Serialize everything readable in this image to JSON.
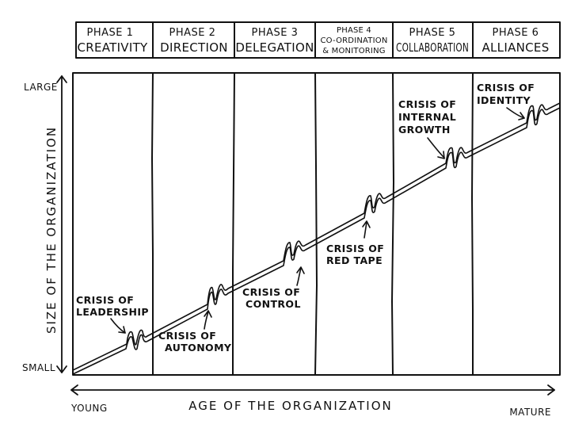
{
  "phases": [
    {
      "number": "PHASE 1",
      "name": "CREATIVITY"
    },
    {
      "number": "PHASE 2",
      "name": "DIRECTION"
    },
    {
      "number": "PHASE 3",
      "name": "DELEGATION"
    },
    {
      "number": "PHASE 4",
      "name_lines": [
        "CO-ORDINATION",
        "& MONITORING"
      ]
    },
    {
      "number": "PHASE 5",
      "name": "COLLABORATION"
    },
    {
      "number": "PHASE 6",
      "name": "ALLIANCES"
    }
  ],
  "y_axis": {
    "label": "SIZE OF THE ORGANIZATION",
    "top": "LARGE",
    "bottom": "SMALL"
  },
  "x_axis": {
    "label": "AGE OF THE ORGANIZATION",
    "left": "YOUNG",
    "right": "MATURE"
  },
  "crises": [
    {
      "lines": [
        "CRISIS OF",
        "LEADERSHIP"
      ]
    },
    {
      "lines": [
        "CRISIS OF",
        "AUTONOMY"
      ]
    },
    {
      "lines": [
        "CRISIS OF",
        "CONTROL"
      ]
    },
    {
      "lines": [
        "CRISIS OF",
        "RED TAPE"
      ]
    },
    {
      "lines": [
        "CRISIS OF",
        "INTERNAL",
        "GROWTH"
      ]
    },
    {
      "lines": [
        "CRISIS OF",
        "IDENTITY"
      ]
    }
  ],
  "colors": {
    "ink": "#111111",
    "paper": "#ffffff"
  }
}
